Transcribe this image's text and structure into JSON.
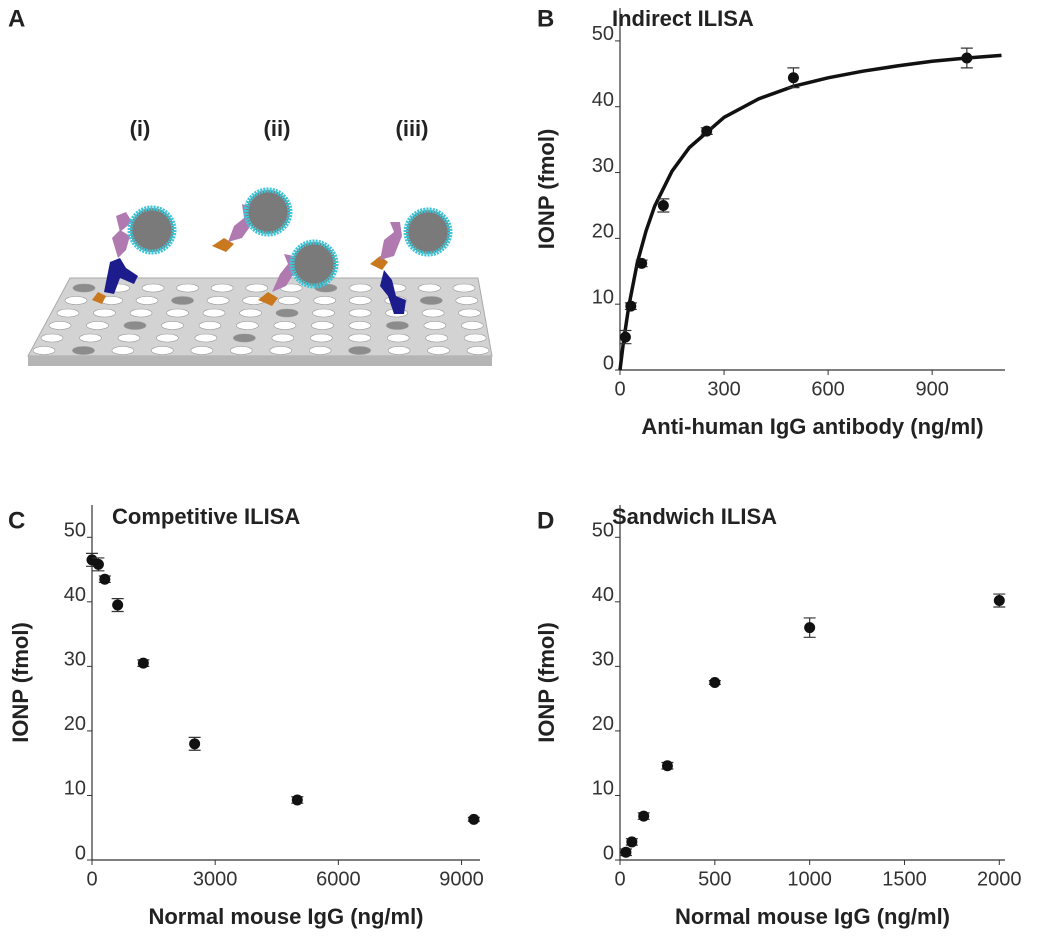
{
  "illustration": {
    "panel": "A",
    "labels": [
      "(i)",
      "(ii)",
      "(iii)"
    ]
  },
  "chart_data": [
    {
      "type": "scatter",
      "panel": "B",
      "title": "Indirect ILISA",
      "x_label": "Anti-human IgG antibody (ng/ml)",
      "y_label": "IONP (fmol)",
      "x": [
        15.6,
        31.25,
        62.5,
        125,
        250,
        500,
        1000
      ],
      "series": [
        {
          "color": "#111111",
          "values": [
            5,
            9.7,
            16.2,
            25,
            36.3,
            44.4,
            47.4
          ],
          "errors": [
            1,
            0.5,
            0.5,
            1,
            0.5,
            1.5,
            1.5
          ]
        }
      ],
      "fit": {
        "color": "#111111",
        "x": [
          0,
          10,
          25,
          50,
          75,
          100,
          150,
          200,
          300,
          400,
          500,
          600,
          700,
          800,
          900,
          1000,
          1100
        ],
        "values": [
          0,
          4.3,
          9.6,
          16.3,
          21.1,
          24.9,
          30.2,
          33.8,
          38.4,
          41.2,
          43.1,
          44.4,
          45.4,
          46.2,
          46.9,
          47.4,
          47.8
        ]
      },
      "xlim": [
        0,
        1110
      ],
      "ylim": [
        0,
        55
      ],
      "xticks": [
        0,
        300,
        600,
        900
      ],
      "yticks": [
        0,
        10,
        20,
        30,
        40,
        50
      ]
    },
    {
      "type": "scatter",
      "panel": "C",
      "title": "Competitive ILISA",
      "x_label": "Normal mouse IgG (ng/ml)",
      "y_label": "IONP (fmol)",
      "x": [
        0,
        156,
        312,
        625,
        1250,
        2500,
        5000,
        9300
      ],
      "series": [
        {
          "color": "#111111",
          "values": [
            46.5,
            45.8,
            43.5,
            39.5,
            30.5,
            18,
            9.3,
            6.3
          ],
          "errors": [
            1,
            1,
            0.5,
            1,
            0.5,
            1,
            0.5,
            0.3
          ]
        }
      ],
      "xlim": [
        0,
        9450
      ],
      "ylim": [
        0,
        55
      ],
      "xticks": [
        0,
        3000,
        6000,
        9000
      ],
      "yticks": [
        0,
        10,
        20,
        30,
        40,
        50
      ]
    },
    {
      "type": "scatter",
      "panel": "D",
      "title": "Sandwich ILISA",
      "x_label": "Normal mouse IgG (ng/ml)",
      "y_label": "IONP (fmol)",
      "x": [
        31.25,
        62.5,
        125,
        250,
        500,
        1000,
        2000
      ],
      "series": [
        {
          "color": "#111111",
          "values": [
            1.2,
            2.8,
            6.8,
            14.6,
            27.5,
            36,
            40.2
          ],
          "errors": [
            0.5,
            0.5,
            0.5,
            0.5,
            0.3,
            1.5,
            1
          ]
        }
      ],
      "xlim": [
        0,
        2030
      ],
      "ylim": [
        0,
        55
      ],
      "xticks": [
        0,
        500,
        1000,
        1500,
        2000
      ],
      "yticks": [
        0,
        10,
        20,
        30,
        40,
        50
      ]
    }
  ]
}
